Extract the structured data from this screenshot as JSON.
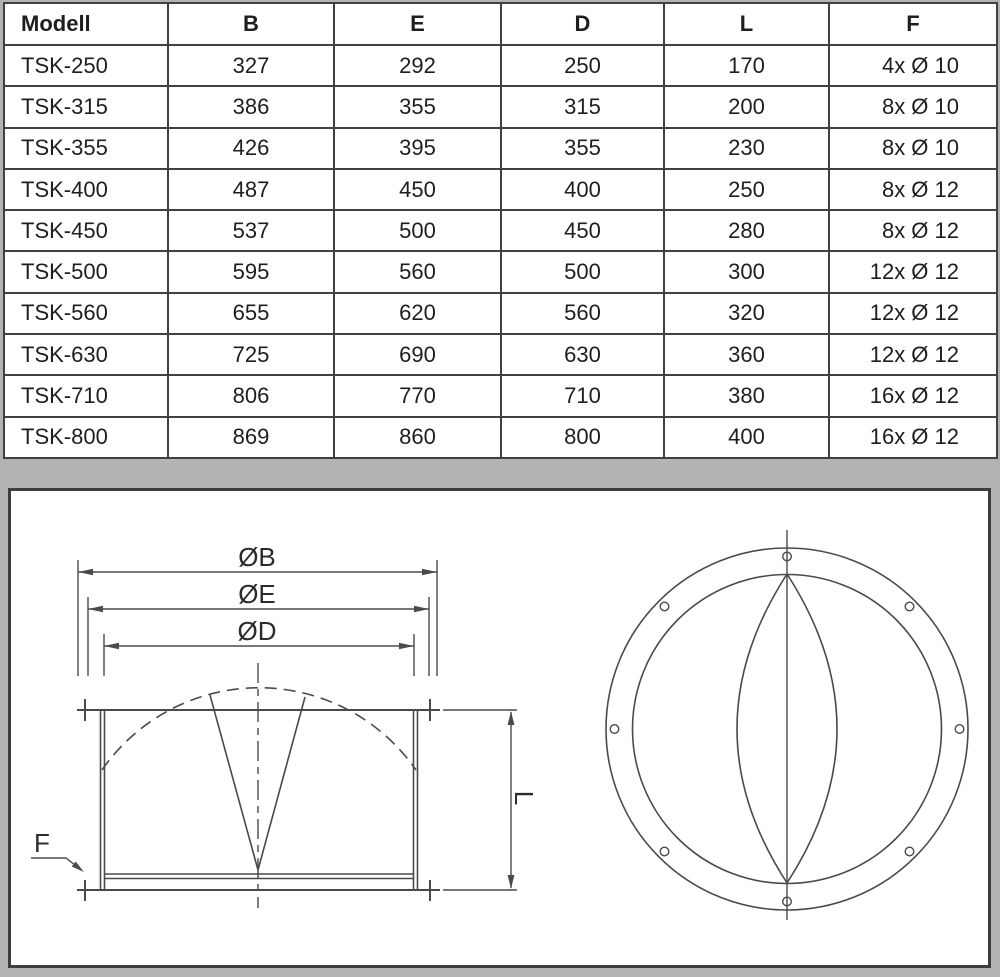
{
  "table": {
    "headers": [
      "Modell",
      "B",
      "E",
      "D",
      "L",
      "F"
    ],
    "rows": [
      [
        "TSK-250",
        "327",
        "292",
        "250",
        "170",
        "4x Ø 10"
      ],
      [
        "TSK-315",
        "386",
        "355",
        "315",
        "200",
        "8x Ø 10"
      ],
      [
        "TSK-355",
        "426",
        "395",
        "355",
        "230",
        "8x Ø 10"
      ],
      [
        "TSK-400",
        "487",
        "450",
        "400",
        "250",
        "8x Ø 12"
      ],
      [
        "TSK-450",
        "537",
        "500",
        "450",
        "280",
        "8x Ø 12"
      ],
      [
        "TSK-500",
        "595",
        "560",
        "500",
        "300",
        "12x Ø 12"
      ],
      [
        "TSK-560",
        "655",
        "620",
        "560",
        "320",
        "12x Ø 12"
      ],
      [
        "TSK-630",
        "725",
        "690",
        "630",
        "360",
        "12x Ø 12"
      ],
      [
        "TSK-710",
        "806",
        "770",
        "710",
        "380",
        "16x Ø 12"
      ],
      [
        "TSK-800",
        "869",
        "860",
        "800",
        "400",
        "16x Ø 12"
      ]
    ]
  },
  "diagram": {
    "labels": {
      "diameter_b": "ØB",
      "diameter_e": "ØE",
      "diameter_d": "ØD",
      "length": "L",
      "flange_hole": "F"
    },
    "front_view": {
      "bolt_hole_count": 8
    }
  },
  "colors": {
    "page_background": "#b3b3b3",
    "panel_background": "#ffffff",
    "line_work": "#4a4a4a",
    "table_border": "#414141",
    "text": "#1e1e1e"
  }
}
